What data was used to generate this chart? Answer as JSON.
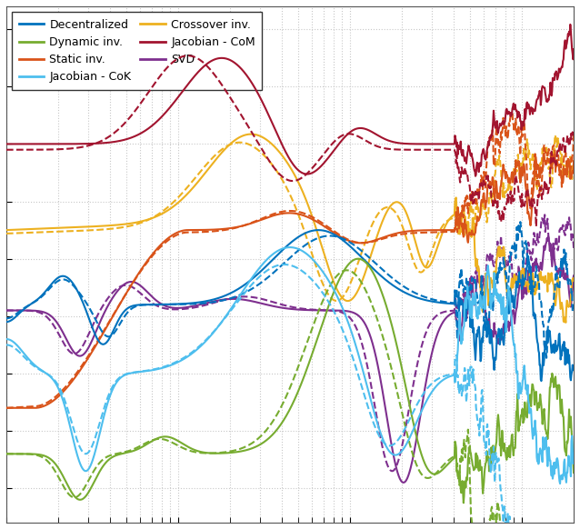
{
  "colors": {
    "decentralized": "#0072BD",
    "static_inv": "#D95319",
    "crossover_inv": "#EDB120",
    "svd": "#7E2F8E",
    "dynamic_inv": "#77AC30",
    "jacobian_cok": "#4DBEEE",
    "jacobian_com": "#A2142F"
  },
  "background_color": "#ffffff",
  "grid_color": "#c8c8c8",
  "xlim": [
    0.1,
    200
  ],
  "ylim": [
    -1.8,
    2.7
  ],
  "figsize": [
    6.38,
    5.82
  ],
  "dpi": 100,
  "legend_labels": [
    "Decentralized",
    "Static inv.",
    "Crossover inv.",
    "SVD",
    "Dynamic inv.",
    "Jacobian - CoK",
    "Jacobian - CoM"
  ]
}
